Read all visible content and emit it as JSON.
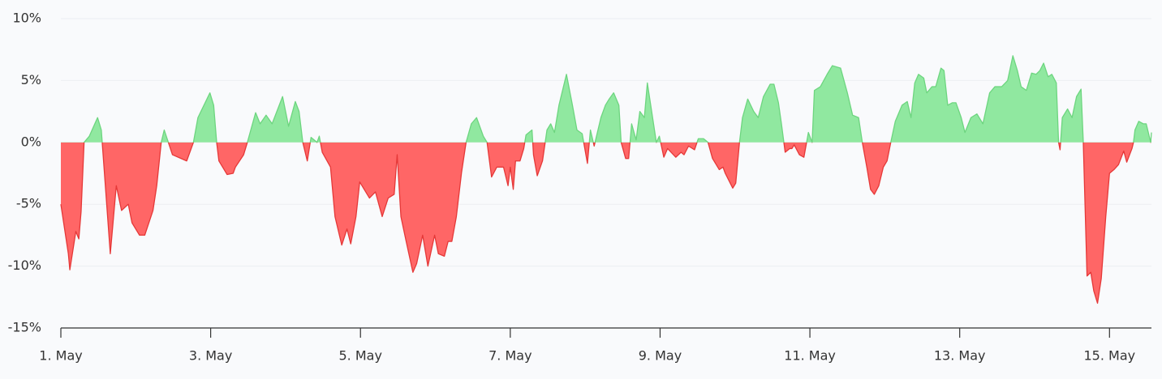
{
  "chart_data": {
    "type": "area",
    "x": [
      1.0,
      1.1,
      1.12,
      1.2,
      1.24,
      1.27,
      1.31,
      1.38,
      1.49,
      1.54,
      1.66,
      1.74,
      1.81,
      1.9,
      1.95,
      2.05,
      2.12,
      2.23,
      2.28,
      2.34,
      2.38,
      2.49,
      2.68,
      2.77,
      2.83,
      2.99,
      3.04,
      3.08,
      3.11,
      3.22,
      3.3,
      3.33,
      3.44,
      3.49,
      3.6,
      3.66,
      3.74,
      3.82,
      3.96,
      4.04,
      4.13,
      4.18,
      4.23,
      4.29,
      4.34,
      4.42,
      4.45,
      4.49,
      4.6,
      4.66,
      4.75,
      4.82,
      4.87,
      4.94,
      4.99,
      5.12,
      5.2,
      5.29,
      5.37,
      5.45,
      5.49,
      5.54,
      5.61,
      5.7,
      5.75,
      5.83,
      5.9,
      5.99,
      6.04,
      6.12,
      6.17,
      6.22,
      6.28,
      6.35,
      6.41,
      6.48,
      6.55,
      6.64,
      6.69,
      6.75,
      6.82,
      6.91,
      6.97,
      7.0,
      7.04,
      7.07,
      7.13,
      7.18,
      7.21,
      7.29,
      7.31,
      7.36,
      7.43,
      7.49,
      7.54,
      7.59,
      7.65,
      7.75,
      7.83,
      7.89,
      7.96,
      8.03,
      8.07,
      8.12,
      8.21,
      8.27,
      8.32,
      8.38,
      8.45,
      8.48,
      8.54,
      8.58,
      8.62,
      8.68,
      8.73,
      8.79,
      8.83,
      8.9,
      8.95,
      8.99,
      9.05,
      9.1,
      9.21,
      9.28,
      9.32,
      9.38,
      9.46,
      9.51,
      9.58,
      9.64,
      9.7,
      9.79,
      9.84,
      9.87,
      9.97,
      10.01,
      10.06,
      10.1,
      10.17,
      10.25,
      10.31,
      10.38,
      10.47,
      10.52,
      10.58,
      10.62,
      10.67,
      10.73,
      10.76,
      10.79,
      10.86,
      10.92,
      10.98,
      11.03,
      11.06,
      11.14,
      11.23,
      11.3,
      11.41,
      11.5,
      11.57,
      11.65,
      11.7,
      11.76,
      11.81,
      11.86,
      11.92,
      11.98,
      12.03,
      12.08,
      12.14,
      12.23,
      12.3,
      12.35,
      12.4,
      12.45,
      12.52,
      12.56,
      12.63,
      12.68,
      12.75,
      12.79,
      12.84,
      12.9,
      12.95,
      13.02,
      13.07,
      13.15,
      13.23,
      13.31,
      13.4,
      13.47,
      13.56,
      13.64,
      13.71,
      13.77,
      13.82,
      13.89,
      13.96,
      14.02,
      14.07,
      14.12,
      14.18,
      14.23,
      14.29,
      14.32,
      14.34,
      14.37,
      14.44,
      14.5,
      14.56,
      14.62,
      14.65,
      14.7,
      14.75,
      14.79,
      14.84,
      14.89,
      14.95,
      15.0,
      15.06,
      15.12,
      15.19,
      15.23,
      15.3,
      15.32,
      15.34,
      15.39,
      15.45,
      15.49,
      15.55,
      15.56
    ],
    "values": [
      -5,
      -9,
      -10.3,
      -7.2,
      -7.8,
      -5.6,
      0,
      0.5,
      2,
      1,
      -9,
      -3.5,
      -5.5,
      -5,
      -6.5,
      -7.5,
      -7.5,
      -5.5,
      -3.5,
      0,
      1,
      -1,
      -1.5,
      0,
      2,
      4,
      3,
      0,
      -1.5,
      -2.6,
      -2.5,
      -2,
      -1,
      0,
      2.4,
      1.5,
      2.2,
      1.5,
      3.7,
      1.3,
      3.3,
      2.5,
      0,
      -1.5,
      0.4,
      0,
      0.5,
      -0.8,
      -2,
      -6,
      -8.3,
      -7,
      -8.2,
      -6,
      -3.2,
      -4.5,
      -4,
      -6,
      -4.5,
      -4.2,
      -1,
      -6,
      -8,
      -10.5,
      -9.8,
      -7.5,
      -10,
      -7.5,
      -9,
      -9.2,
      -8,
      -8,
      -6,
      -2.4,
      0,
      1.5,
      2,
      0.5,
      0,
      -2.8,
      -2,
      -2,
      -3.5,
      -2,
      -3.8,
      -1.5,
      -1.5,
      -0.5,
      0.6,
      1,
      -1,
      -2.7,
      -1.5,
      1,
      1.5,
      0.8,
      3,
      5.5,
      3,
      1,
      0.7,
      -1.7,
      1,
      -0.3,
      2,
      3,
      3.5,
      4,
      3,
      0,
      -1.3,
      -1.3,
      1.5,
      0.2,
      2.5,
      2,
      4.8,
      2,
      0,
      0.5,
      -1.2,
      -0.5,
      -1.2,
      -0.8,
      -1,
      -0.3,
      -0.6,
      0.3,
      0.3,
      0,
      -1.3,
      -2.2,
      -2,
      -2.5,
      -3.7,
      -3.3,
      0,
      2,
      3.5,
      2.5,
      2,
      3.7,
      4.7,
      4.7,
      3.2,
      1.5,
      -0.8,
      -0.5,
      -0.5,
      -0.2,
      -1,
      -1.2,
      0.8,
      0,
      4.2,
      4.5,
      5.5,
      6.2,
      6,
      4,
      2.2,
      2,
      0,
      -2,
      -3.8,
      -4.2,
      -3.5,
      -2,
      -1.5,
      0,
      1.7,
      3,
      3.3,
      2,
      4.8,
      5.5,
      5.2,
      4,
      4.5,
      4.5,
      6,
      5.8,
      3,
      3.2,
      3.2,
      2,
      0.8,
      2,
      2.3,
      1.5,
      4,
      4.5,
      4.5,
      5,
      7,
      5.8,
      4.5,
      4.2,
      5.6,
      5.5,
      5.8,
      6.4,
      5.3,
      5.5,
      4.8,
      0,
      -0.6,
      2,
      2.7,
      2,
      3.7,
      4.3,
      0,
      -10.8,
      -10.5,
      -12,
      -13,
      -11,
      -6,
      -2.5,
      -2.2,
      -1.8,
      -0.7,
      -1.6,
      -0.5,
      0,
      1,
      1.7,
      1.5,
      1.5,
      0,
      0.8
    ],
    "xlim": [
      1,
      15.56
    ],
    "xticks": [
      {
        "value": 1,
        "label": "1. May"
      },
      {
        "value": 3,
        "label": "3. May"
      },
      {
        "value": 5,
        "label": "5. May"
      },
      {
        "value": 7,
        "label": "7. May"
      },
      {
        "value": 9,
        "label": "9. May"
      },
      {
        "value": 11,
        "label": "11. May"
      },
      {
        "value": 13,
        "label": "13. May"
      },
      {
        "value": 15,
        "label": "15. May"
      }
    ],
    "ylim": [
      -15,
      10
    ],
    "yticks": [
      {
        "value": -15,
        "label": "-15%"
      },
      {
        "value": -10,
        "label": "-10%"
      },
      {
        "value": -5,
        "label": "-5%"
      },
      {
        "value": 0,
        "label": "0%"
      },
      {
        "value": 5,
        "label": "5%"
      },
      {
        "value": 10,
        "label": "10%"
      }
    ],
    "grid": true,
    "positive_color": "#90e8a0",
    "negative_color": "#ff6666",
    "positive_line_color": "#6dd57f",
    "negative_line_color": "#e53838"
  }
}
